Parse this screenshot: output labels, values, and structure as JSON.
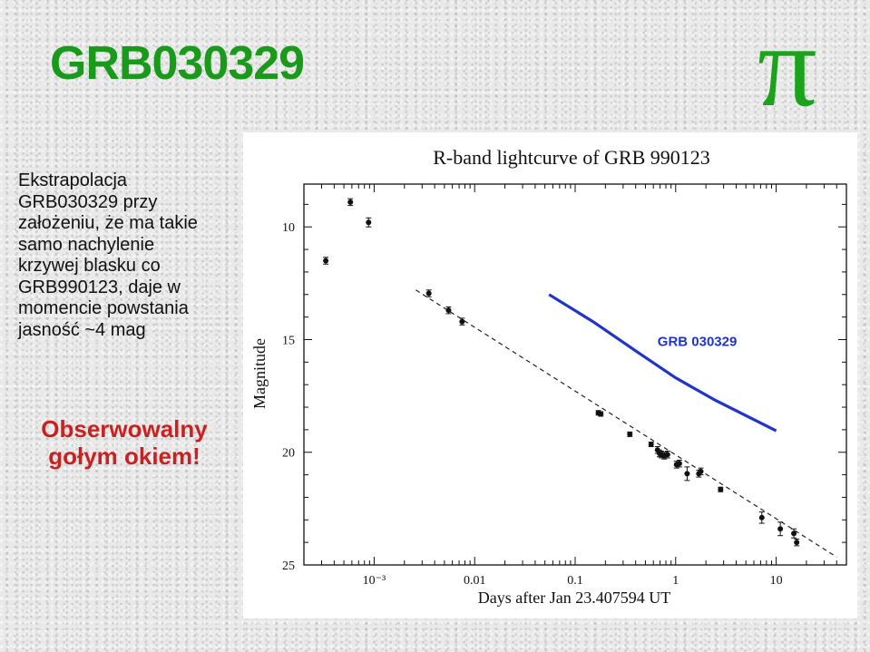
{
  "slide": {
    "title": "GRB030329",
    "pi_symbol": "π",
    "description": "Ekstrapolacja\nGRB030329 przy\nzałożeniu, że ma takie\nsamo nachylenie\nkrzywej blasku co\nGRB990123, daje w\nmomencie powstania\njasność ~4 mag",
    "note": "Obserwowalny\ngołym okiem!"
  },
  "colors": {
    "title": "#1a9a1a",
    "pi": "#1ba31b",
    "note": "#cc1f1f",
    "grb030329_line": "#1f35c9",
    "data_points": "#111111"
  },
  "chart_data": {
    "type": "scatter",
    "title": "R-band lightcurve of GRB 990123",
    "xlabel": "Days after Jan 23.407594 UT",
    "ylabel": "Magnitude",
    "x_scale": "log",
    "y_inverted": true,
    "xlim": [
      0.0002,
      50
    ],
    "ylim": [
      25,
      8.1
    ],
    "x_ticks": [
      {
        "value": 0.001,
        "label": "10⁻³"
      },
      {
        "value": 0.01,
        "label": "0.01"
      },
      {
        "value": 0.1,
        "label": "0.1"
      },
      {
        "value": 1,
        "label": "1"
      },
      {
        "value": 10,
        "label": "10"
      }
    ],
    "y_ticks": [
      10,
      15,
      20,
      25
    ],
    "series": [
      {
        "name": "",
        "kind": "points",
        "points": [
          {
            "x": 0.00033,
            "y": 11.5,
            "err": 0.15
          },
          {
            "x": 0.00058,
            "y": 8.9,
            "err": 0.15
          },
          {
            "x": 0.00088,
            "y": 9.8,
            "err": 0.2
          },
          {
            "x": 0.0035,
            "y": 12.95,
            "err": 0.15
          },
          {
            "x": 0.0055,
            "y": 13.7,
            "err": 0.15
          },
          {
            "x": 0.0075,
            "y": 14.2,
            "err": 0.15
          },
          {
            "x": 0.17,
            "y": 18.25,
            "err": 0.1
          },
          {
            "x": 0.18,
            "y": 18.3,
            "err": 0.1
          },
          {
            "x": 0.35,
            "y": 19.2,
            "err": 0.1
          },
          {
            "x": 0.57,
            "y": 19.65,
            "err": 0.1
          },
          {
            "x": 0.66,
            "y": 19.9,
            "err": 0.15
          },
          {
            "x": 0.69,
            "y": 20.05,
            "err": 0.15
          },
          {
            "x": 0.72,
            "y": 20.1,
            "err": 0.15
          },
          {
            "x": 0.77,
            "y": 20.15,
            "err": 0.15
          },
          {
            "x": 0.83,
            "y": 20.1,
            "err": 0.15
          },
          {
            "x": 1.02,
            "y": 20.55,
            "err": 0.15
          },
          {
            "x": 1.09,
            "y": 20.5,
            "err": 0.15
          },
          {
            "x": 1.3,
            "y": 20.95,
            "err": 0.3
          },
          {
            "x": 1.7,
            "y": 20.95,
            "err": 0.15
          },
          {
            "x": 1.78,
            "y": 20.85,
            "err": 0.15
          },
          {
            "x": 2.8,
            "y": 21.65,
            "err": 0.1
          },
          {
            "x": 7.2,
            "y": 22.9,
            "err": 0.25
          },
          {
            "x": 11.0,
            "y": 23.4,
            "err": 0.3
          },
          {
            "x": 15.0,
            "y": 23.6,
            "err": 0.2
          },
          {
            "x": 16.0,
            "y": 24.0,
            "err": 0.15
          }
        ]
      },
      {
        "name": "",
        "kind": "dashed-fit",
        "points": [
          {
            "x": 0.0026,
            "y": 12.8
          },
          {
            "x": 40,
            "y": 24.65
          }
        ]
      },
      {
        "name": "GRB 030329",
        "kind": "line",
        "points": [
          {
            "x": 0.055,
            "y": 13.0
          },
          {
            "x": 0.15,
            "y": 14.2
          },
          {
            "x": 0.4,
            "y": 15.5
          },
          {
            "x": 1.0,
            "y": 16.7
          },
          {
            "x": 2.5,
            "y": 17.7
          },
          {
            "x": 10.0,
            "y": 19.05
          }
        ]
      }
    ]
  }
}
